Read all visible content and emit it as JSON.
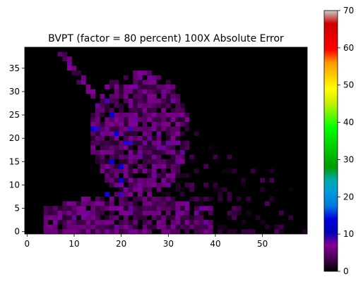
{
  "chart_data": {
    "type": "heatmap",
    "title": "BVPT (factor = 80 percent) 100X Absolute Error",
    "xlabel": "",
    "ylabel": "",
    "xlim": [
      0,
      60
    ],
    "ylim": [
      0,
      40
    ],
    "x_ticks": [
      0,
      10,
      20,
      30,
      40,
      50
    ],
    "y_ticks": [
      0,
      5,
      10,
      15,
      20,
      25,
      30,
      35
    ],
    "colorbar": {
      "colormap": "nipy_spectral",
      "range": [
        0,
        70
      ],
      "ticks": [
        0,
        10,
        20,
        30,
        40,
        50,
        60,
        70
      ]
    },
    "grid": false,
    "colors": {
      "background": "#000000",
      "dominant_purple": "#7b0090",
      "highlight_blue": "#1a1aff"
    }
  }
}
